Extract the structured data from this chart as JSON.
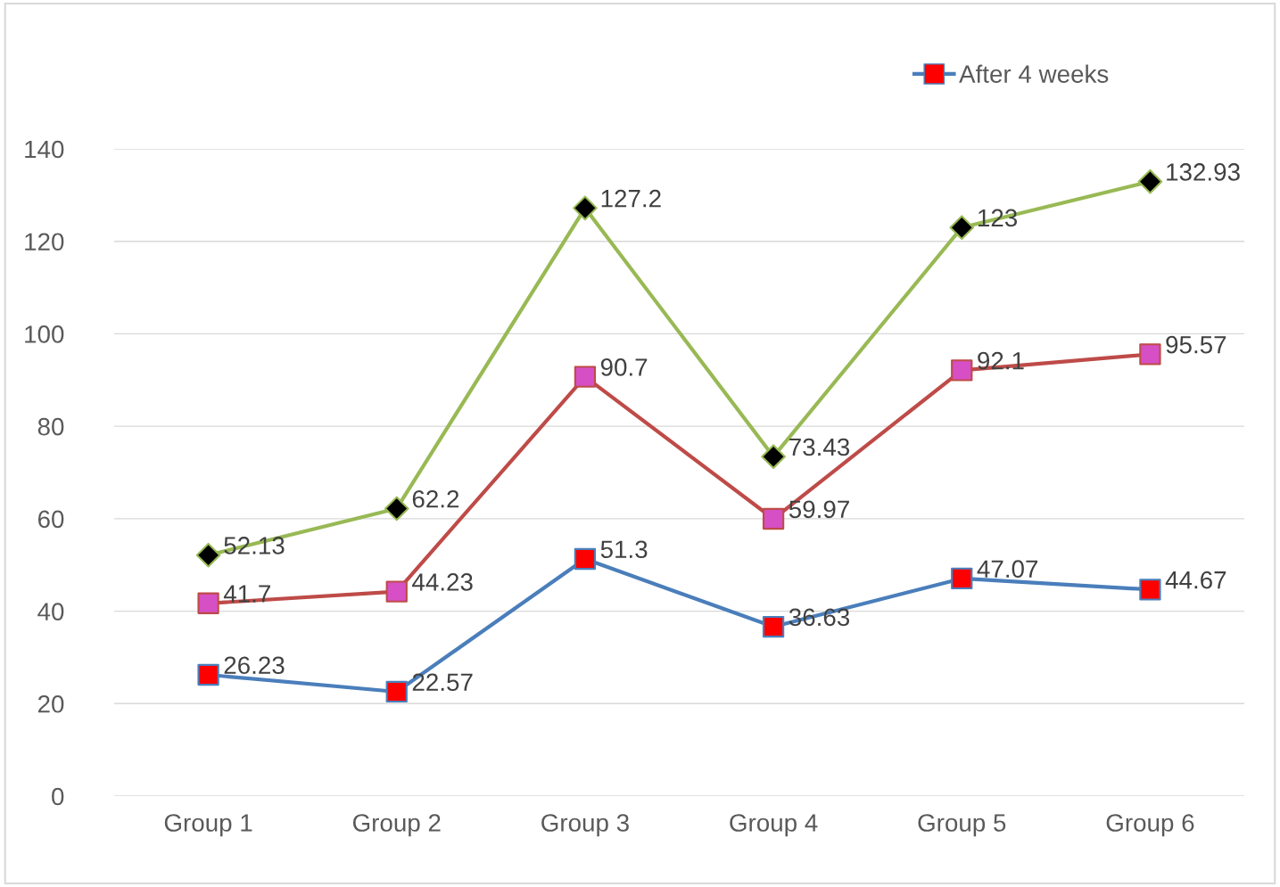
{
  "chart_data": {
    "type": "line",
    "categories": [
      "Group 1",
      "Group 2",
      "Group 3",
      "Group 4",
      "Group 5",
      "Group 6"
    ],
    "series": [
      {
        "name": "After 4 weeks",
        "color": "#4a7ebb",
        "marker": "square",
        "colors": [
          "#ff0000",
          "#ff0000",
          "#ff0000",
          "#ff0000",
          "#ff0000",
          "#ff0000"
        ],
        "values": [
          26.23,
          22.57,
          51.3,
          36.63,
          47.07,
          44.67
        ]
      },
      {
        "color": "#be4b48",
        "marker": "square",
        "colors": [
          "#d64fc4",
          "#d64fc4",
          "#d64fc4",
          "#d64fc4",
          "#d64fc4",
          "#d64fc4"
        ],
        "values": [
          41.7,
          44.23,
          90.7,
          59.97,
          92.1,
          95.57
        ]
      },
      {
        "color": "#98b954",
        "marker": "diamond",
        "colors": [
          "#000000",
          "#000000",
          "#000000",
          "#000000",
          "#000000",
          "#000000"
        ],
        "values": [
          52.13,
          62.2,
          127.2,
          73.43,
          123,
          132.93
        ]
      }
    ],
    "ylim": [
      0,
      140
    ],
    "yticks": [
      0,
      20,
      40,
      60,
      80,
      100,
      120,
      140
    ],
    "grid": "y",
    "legend": "top right",
    "data_labels": true
  }
}
